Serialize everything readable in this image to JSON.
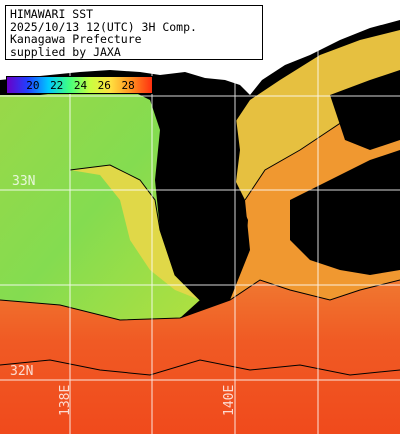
{
  "title": {
    "line1": "HIMAWARI SST",
    "line2": "2025/10/13 12(UTC) 3H Comp.",
    "line3": "Kanagawa Prefecture",
    "line4": "supplied by JAXA"
  },
  "colorbar": {
    "ticks": [
      "20",
      "22",
      "24",
      "26",
      "28"
    ],
    "gradient": [
      "#6a00c8",
      "#2040ff",
      "#00c8ff",
      "#40ff80",
      "#c8ff40",
      "#ffe040",
      "#ff9020",
      "#ff3010"
    ]
  },
  "grid_labels": {
    "lat_33": "33N",
    "lat_32": "32N",
    "lon_138": "138E",
    "lon_140": "140E"
  },
  "colors": {
    "land": "#ffffff",
    "no_data": "#000000",
    "sst_cool": "#80e048",
    "sst_mid": "#d8e040",
    "sst_warm": "#f0a030",
    "sst_hot": "#f05020"
  }
}
